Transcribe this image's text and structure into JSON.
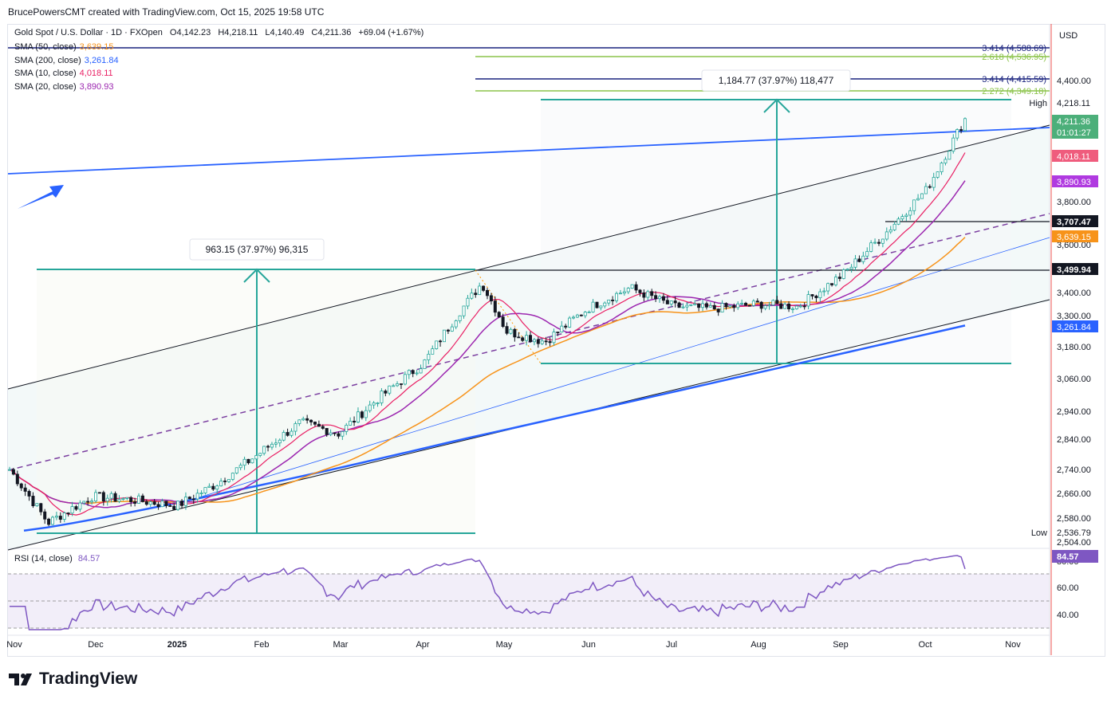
{
  "credit": "BrucePowersCMT created with TradingView.com, Oct 15, 2025 19:58 UTC",
  "legend": {
    "symbol": "Gold Spot / U.S. Dollar · 1D · FXOpen",
    "open": "O4,142.23",
    "high": "H4,218.11",
    "low": "L4,140.49",
    "close": "C4,211.36",
    "change": "+69.04 (+1.67%)",
    "sma_rows": [
      {
        "label": "SMA (50, close)",
        "value": "3,639.15",
        "color": "#f7931a"
      },
      {
        "label": "SMA (200, close)",
        "value": "3,261.84",
        "color": "#2962ff"
      },
      {
        "label": "SMA (10, close)",
        "value": "4,018.11",
        "color": "#e91e63"
      },
      {
        "label": "SMA (20, close)",
        "value": "3,890.93",
        "color": "#9c27b0"
      }
    ]
  },
  "rsi": {
    "label": "RSI (14, close)",
    "value": "84.57",
    "ticks": [
      "60.00",
      "40.00"
    ],
    "overbought_label": "80.00"
  },
  "brand": "TradingView",
  "chart_data": {
    "type": "candlestick",
    "currency": "USD",
    "yaxis_ticks": [
      "4,400.00",
      "3,800.00",
      "3,600.00",
      "3,400.00",
      "3,300.00",
      "3,180.00",
      "3,060.00",
      "2,940.00",
      "2,840.00",
      "2,740.00",
      "2,660.00",
      "2,580.00",
      "2,504.00"
    ],
    "xaxis_labels": [
      "Nov",
      "Dec",
      "2025",
      "Feb",
      "Mar",
      "Apr",
      "May",
      "Jun",
      "Jul",
      "Aug",
      "Sep",
      "Oct",
      "Nov"
    ],
    "price_labels": [
      {
        "text": "4,218.11",
        "tag": "High",
        "color": "#ffffff",
        "fg": "#131722"
      },
      {
        "text": "4,211.36",
        "sub": "01:01:27",
        "color": "#4caf7a",
        "fg": "#ffffff"
      },
      {
        "text": "4,018.11",
        "color": "#ef5c7d",
        "fg": "#ffffff"
      },
      {
        "text": "3,890.93",
        "color": "#b03ae0",
        "fg": "#ffffff"
      },
      {
        "text": "3,707.47",
        "color": "#131722",
        "fg": "#ffffff"
      },
      {
        "text": "3,639.15",
        "color": "#f7931a",
        "fg": "#ffffff"
      },
      {
        "text": "3,499.94",
        "color": "#131722",
        "fg": "#ffffff"
      },
      {
        "text": "3,261.84",
        "color": "#2962ff",
        "fg": "#ffffff"
      },
      {
        "text": "2,536.79",
        "tag": "Low",
        "color": "#ffffff",
        "fg": "#131722"
      }
    ],
    "fib_levels": [
      {
        "text": "3.414 (4,588.69)",
        "color": "#1a237e"
      },
      {
        "text": "2.618 (4,536.95)",
        "color": "#8bc34a"
      },
      {
        "text": "3.414 (4,415.59)",
        "color": "#1a237e"
      },
      {
        "text": "2.272 (4,349.18)",
        "color": "#8bc34a"
      }
    ],
    "measures": [
      {
        "text": "963.15 (37.97%) 96,315"
      },
      {
        "text": "1,184.77 (37.97%) 118,477"
      }
    ],
    "close_points": [
      {
        "x": "2024-11-01",
        "y": 2740
      },
      {
        "x": "2024-11-15",
        "y": 2565
      },
      {
        "x": "2024-12-01",
        "y": 2650
      },
      {
        "x": "2024-12-15",
        "y": 2640
      },
      {
        "x": "2025-01-01",
        "y": 2620
      },
      {
        "x": "2025-01-15",
        "y": 2690
      },
      {
        "x": "2025-02-01",
        "y": 2800
      },
      {
        "x": "2025-02-15",
        "y": 2900
      },
      {
        "x": "2025-03-01",
        "y": 2860
      },
      {
        "x": "2025-03-15",
        "y": 2985
      },
      {
        "x": "2025-04-01",
        "y": 3120
      },
      {
        "x": "2025-04-22",
        "y": 3440
      },
      {
        "x": "2025-05-01",
        "y": 3240
      },
      {
        "x": "2025-05-15",
        "y": 3200
      },
      {
        "x": "2025-06-01",
        "y": 3340
      },
      {
        "x": "2025-06-15",
        "y": 3420
      },
      {
        "x": "2025-07-01",
        "y": 3340
      },
      {
        "x": "2025-07-15",
        "y": 3330
      },
      {
        "x": "2025-08-01",
        "y": 3350
      },
      {
        "x": "2025-08-15",
        "y": 3340
      },
      {
        "x": "2025-09-01",
        "y": 3480
      },
      {
        "x": "2025-09-15",
        "y": 3640
      },
      {
        "x": "2025-10-01",
        "y": 3860
      },
      {
        "x": "2025-10-15",
        "y": 4211.36
      }
    ]
  }
}
